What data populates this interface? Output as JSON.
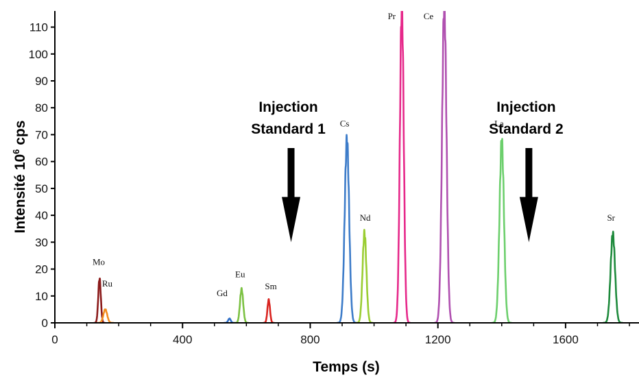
{
  "chart_data": {
    "type": "line",
    "xlabel": "Temps (s)",
    "ylabel_main": "Intensité 10",
    "ylabel_sup": "6",
    "ylabel_unit": " cps",
    "xlim": [
      0,
      1830
    ],
    "ylim": [
      0,
      116
    ],
    "x_ticks": [
      0,
      400,
      800,
      1200,
      1600
    ],
    "y_ticks": [
      0,
      10,
      20,
      30,
      40,
      50,
      60,
      70,
      80,
      90,
      100,
      110
    ],
    "series": [
      {
        "name": "Mo",
        "color": "#8b1a1a",
        "center": 140,
        "height": 16.5,
        "width": 4
      },
      {
        "name": "Ru",
        "color": "#f28c1e",
        "center": 158,
        "height": 5,
        "width": 6
      },
      {
        "name": "Gd",
        "color": "#2f6fc7",
        "center": 547,
        "height": 1.6,
        "width": 4
      },
      {
        "name": "Eu",
        "color": "#7bc142",
        "center": 585,
        "height": 12.5,
        "width": 5
      },
      {
        "name": "Sm",
        "color": "#d9231f",
        "center": 670,
        "height": 8.5,
        "width": 4
      },
      {
        "name": "Cs",
        "color": "#3d7cc9",
        "center": 915,
        "height": 68,
        "width": 7
      },
      {
        "name": "Nd",
        "color": "#9acd32",
        "center": 970,
        "height": 33.5,
        "width": 6
      },
      {
        "name": "Pr",
        "color": "#e6288a",
        "center": 1087,
        "height": 118,
        "width": 6
      },
      {
        "name": "Ce",
        "color": "#b050b0",
        "center": 1220,
        "height": 118,
        "width": 7
      },
      {
        "name": "La",
        "color": "#6ccf6c",
        "center": 1400,
        "height": 67.5,
        "width": 7
      },
      {
        "name": "Sr",
        "color": "#1e8a3c",
        "center": 1748,
        "height": 33,
        "width": 7
      }
    ],
    "peak_labels": [
      {
        "text": "Mo",
        "x": 118,
        "y": 21.5
      },
      {
        "text": "Ru",
        "x": 148,
        "y": 13.5
      },
      {
        "text": "Gd",
        "x": 507,
        "y": 10
      },
      {
        "text": "Eu",
        "x": 565,
        "y": 17
      },
      {
        "text": "Sm",
        "x": 658,
        "y": 12.5
      },
      {
        "text": "Cs",
        "x": 893,
        "y": 73
      },
      {
        "text": "Nd",
        "x": 955,
        "y": 38
      },
      {
        "text": "Pr",
        "x": 1043,
        "y": 113
      },
      {
        "text": "Ce",
        "x": 1155,
        "y": 113
      },
      {
        "text": "La",
        "x": 1377,
        "y": 73
      },
      {
        "text": "Sr",
        "x": 1730,
        "y": 38
      }
    ],
    "annotations": [
      {
        "line1": "Injection",
        "line2": "Standard 1",
        "arrow_x": 740,
        "arrow_top": 65,
        "arrow_bottom": 30
      },
      {
        "line1": "Injection",
        "line2": "Standard 2",
        "arrow_x": 1485,
        "arrow_top": 65,
        "arrow_bottom": 30
      }
    ]
  }
}
